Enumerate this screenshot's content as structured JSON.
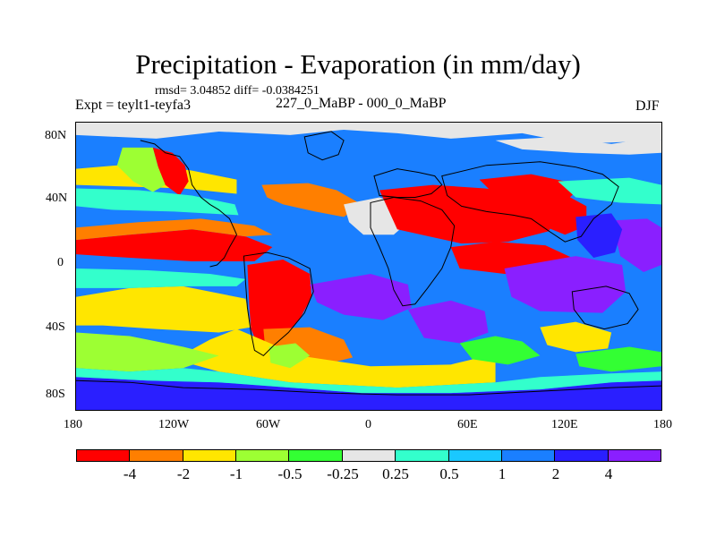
{
  "title": "Precipitation - Evaporation (in mm/day)",
  "stats_text": "rmsd= 3.04852 diff= -0.0384251",
  "left_label": "Expt = teylt1-teyfa3",
  "center_label": "227_0_MaBP - 000_0_MaBP",
  "right_label": "DJF",
  "map": {
    "lat_ticks": [
      "80N",
      "40N",
      "0",
      "40S",
      "80S"
    ],
    "lon_ticks": [
      "180",
      "120W",
      "60W",
      "0",
      "60E",
      "120E",
      "180"
    ]
  },
  "colorbar": {
    "labels": [
      "-4",
      "-2",
      "-1",
      "-0.5",
      "-0.25",
      "0.25",
      "0.5",
      "1",
      "2",
      "4"
    ],
    "colors": [
      "#ff0000",
      "#ff7f00",
      "#ffe600",
      "#9dff33",
      "#33ff33",
      "#e6e6e6",
      "#33ffcc",
      "#1ac8ff",
      "#1a7fff",
      "#2a1fff",
      "#8a1fff"
    ]
  },
  "palette_named": {
    "red": "#ff0000",
    "orange": "#ff7f00",
    "yellow": "#ffe600",
    "yellowgreen": "#9dff33",
    "green": "#33ff33",
    "gray": "#e6e6e6",
    "cyan": "#33ffcc",
    "skyblue": "#1ac8ff",
    "blue": "#1a7fff",
    "deepblue": "#2a1fff",
    "purple": "#8a1fff"
  }
}
